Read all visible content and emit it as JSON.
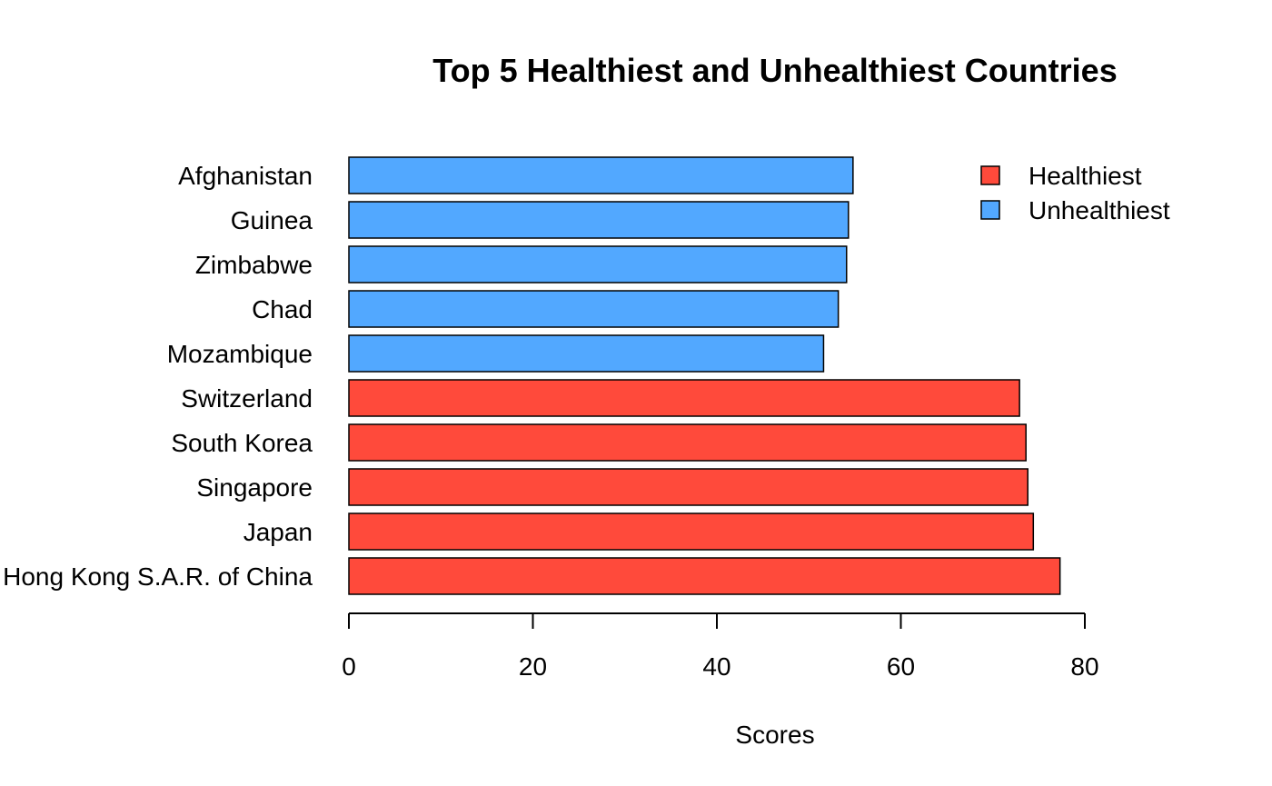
{
  "chart_data": {
    "type": "bar",
    "orientation": "horizontal",
    "title": "Top 5 Healthiest and Unhealthiest Countries",
    "xlabel": "Scores",
    "ylabel": "",
    "xlim": [
      0,
      80
    ],
    "xticks": [
      "0",
      "20",
      "40",
      "60",
      "80"
    ],
    "grid": false,
    "legend_position": "top-right",
    "categories": [
      "Hong Kong S.A.R. of China",
      "Japan",
      "Singapore",
      "South Korea",
      "Switzerland",
      "Mozambique",
      "Chad",
      "Zimbabwe",
      "Guinea",
      "Afghanistan"
    ],
    "values": [
      77.3,
      74.4,
      73.8,
      73.6,
      72.9,
      51.6,
      53.2,
      54.1,
      54.3,
      54.8
    ],
    "groups": [
      "Healthiest",
      "Healthiest",
      "Healthiest",
      "Healthiest",
      "Healthiest",
      "Unhealthiest",
      "Unhealthiest",
      "Unhealthiest",
      "Unhealthiest",
      "Unhealthiest"
    ],
    "legend": [
      {
        "label": "Healthiest",
        "color": "#ff4a3b"
      },
      {
        "label": "Unhealthiest",
        "color": "#52a8ff"
      }
    ]
  }
}
